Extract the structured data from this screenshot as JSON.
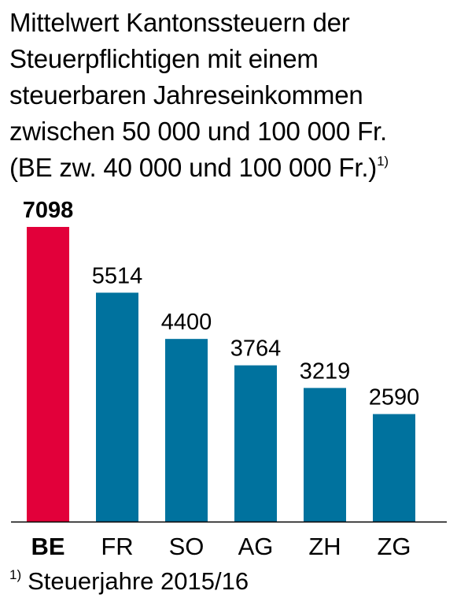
{
  "title": {
    "lines": [
      "Mittelwert Kantonssteuern der",
      "Steuerpflichtigen mit einem",
      "steuerbaren Jahreseinkommen",
      "zwischen 50 000 und 100 000 Fr.",
      "(BE zw. 40 000 und 100 000 Fr.)"
    ],
    "footnote_marker": "1)"
  },
  "footnote": {
    "marker": "1)",
    "text": "Steuerjahre 2015/16"
  },
  "colors": {
    "highlight": "#E2003A",
    "bar": "#00729E",
    "axis": "#000000"
  },
  "chart_data": {
    "type": "bar",
    "categories": [
      "BE",
      "FR",
      "SO",
      "AG",
      "ZH",
      "ZG"
    ],
    "values": [
      7098,
      5514,
      4400,
      3764,
      3219,
      2590
    ],
    "highlight_category": "BE",
    "ylim": [
      0,
      7098
    ],
    "grid": false,
    "legend": "none"
  }
}
